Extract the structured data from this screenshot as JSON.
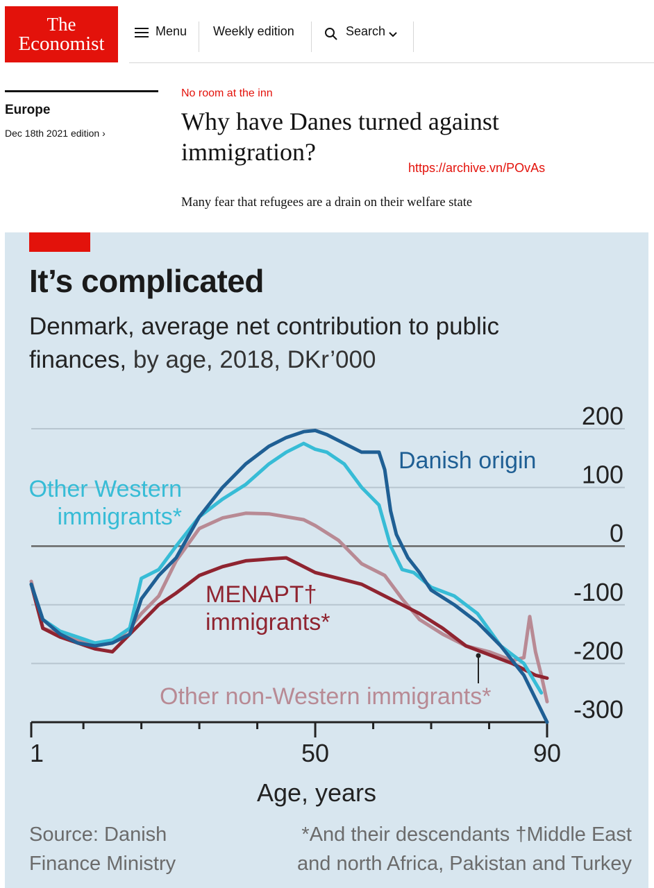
{
  "header": {
    "logo_line1": "The",
    "logo_line2": "Economist",
    "menu_label": "Menu",
    "weekly_label": "Weekly edition",
    "search_label": "Search"
  },
  "article": {
    "section": "Europe",
    "edition": "Dec 18th 2021 edition ›",
    "rubric": "No room at the inn",
    "headline": "Why have Danes turned against immigration?",
    "archive_link": "https://archive.vn/POvAs",
    "standfirst": "Many fear that refugees are a drain on their welfare state"
  },
  "chart_data": {
    "type": "line",
    "title": "It’s complicated",
    "subtitle_main": "Denmark, average net contribution to public finances,",
    "subtitle_rest": " by age, 2018, DKr’000",
    "xlabel": "Age, years",
    "xlim": [
      1,
      90
    ],
    "ylim": [
      -300,
      200
    ],
    "x_tick_labels": [
      "1",
      "50",
      "90"
    ],
    "y_tick_labels": [
      "200",
      "100",
      "0",
      "-100",
      "-200",
      "-300"
    ],
    "y_ticks": [
      200,
      100,
      0,
      -100,
      -200,
      -300
    ],
    "x_label_ticks": [
      1,
      50,
      90
    ],
    "source": [
      "Source: Danish",
      "Finance Ministry"
    ],
    "footnote": [
      "*And their descendants  †Middle East",
      "and north Africa, Pakistan and Turkey"
    ],
    "colors": {
      "danish": "#1f5f94",
      "western": "#37bcd6",
      "menapt": "#8f2430",
      "nonwestern": "#b88a94",
      "zero_line": "#666666",
      "grid": "#b7c5cf"
    },
    "series": [
      {
        "name": "Danish origin",
        "label_lines": [
          "Danish origin"
        ],
        "color": "#1f5f94",
        "x": [
          1,
          3,
          6,
          9,
          12,
          15,
          18,
          20,
          23,
          26,
          30,
          34,
          38,
          42,
          45,
          48,
          50,
          52,
          55,
          58,
          61,
          62,
          63,
          64,
          66,
          68,
          70,
          74,
          78,
          82,
          86,
          89,
          90
        ],
        "y": [
          -65,
          -125,
          -150,
          -165,
          -170,
          -165,
          -150,
          -90,
          -50,
          -20,
          50,
          100,
          140,
          170,
          185,
          195,
          197,
          190,
          175,
          160,
          160,
          130,
          60,
          20,
          -20,
          -45,
          -75,
          -100,
          -130,
          -170,
          -220,
          -280,
          -300
        ]
      },
      {
        "name": "Other Western immigrants",
        "label_lines": [
          "Other Western",
          "immigrants*"
        ],
        "color": "#37bcd6",
        "x": [
          1,
          3,
          6,
          9,
          12,
          15,
          18,
          20,
          23,
          26,
          30,
          34,
          38,
          42,
          45,
          48,
          50,
          52,
          55,
          58,
          61,
          63,
          65,
          67,
          70,
          74,
          78,
          82,
          86,
          89
        ],
        "y": [
          -65,
          -125,
          -145,
          -155,
          -165,
          -160,
          -140,
          -55,
          -40,
          0,
          50,
          80,
          105,
          140,
          160,
          175,
          165,
          160,
          140,
          100,
          70,
          0,
          -40,
          -45,
          -70,
          -85,
          -115,
          -170,
          -200,
          -250
        ]
      },
      {
        "name": "MENAPT immigrants",
        "label_lines": [
          "MENAPT†",
          "immigrants*"
        ],
        "color": "#8f2430",
        "x": [
          1,
          3,
          6,
          9,
          12,
          15,
          18,
          20,
          23,
          26,
          30,
          34,
          38,
          42,
          45,
          48,
          50,
          54,
          58,
          62,
          65,
          68,
          72,
          76,
          80,
          84,
          88,
          90
        ],
        "y": [
          -65,
          -140,
          -155,
          -165,
          -175,
          -180,
          -150,
          -130,
          -100,
          -80,
          -50,
          -35,
          -25,
          -22,
          -20,
          -35,
          -45,
          -55,
          -65,
          -85,
          -100,
          -115,
          -140,
          -170,
          -185,
          -200,
          -220,
          -225
        ]
      },
      {
        "name": "Other non-Western immigrants",
        "label_lines": [
          "Other non-Western immigrants*"
        ],
        "color": "#b88a94",
        "x": [
          1,
          3,
          6,
          9,
          12,
          15,
          18,
          20,
          23,
          26,
          30,
          34,
          38,
          42,
          45,
          48,
          50,
          54,
          58,
          62,
          65,
          68,
          72,
          76,
          80,
          84,
          86,
          87,
          88,
          89,
          90
        ],
        "y": [
          -60,
          -140,
          -150,
          -160,
          -170,
          -165,
          -140,
          -115,
          -85,
          -25,
          30,
          48,
          56,
          55,
          50,
          45,
          35,
          10,
          -30,
          -50,
          -90,
          -125,
          -150,
          -170,
          -180,
          -195,
          -190,
          -120,
          -180,
          -220,
          -265
        ]
      }
    ]
  }
}
